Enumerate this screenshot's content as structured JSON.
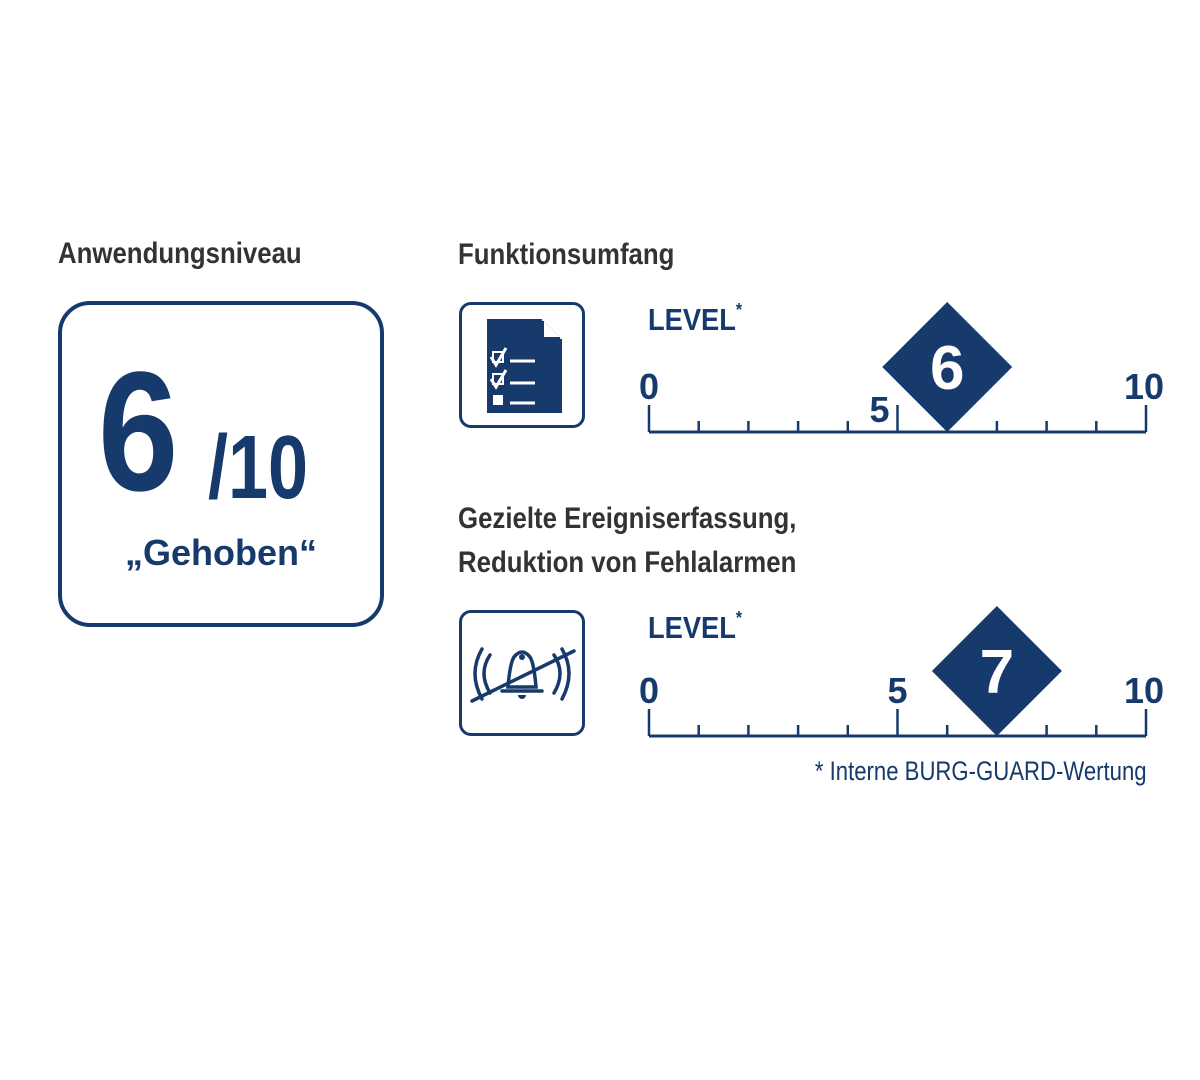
{
  "left": {
    "heading": "Anwendungsniveau",
    "score": "6",
    "max": "/10",
    "rating_label": "„Gehoben“"
  },
  "sections": [
    {
      "heading_lines": [
        "Funktionsumfang"
      ],
      "icon": "checklist-document-icon",
      "level_label": "LEVEL",
      "asterisk": "*",
      "value": 6,
      "value_label": "6",
      "scale_min": "0",
      "scale_mid": "5",
      "scale_max": "10"
    },
    {
      "heading_lines": [
        "Gezielte Ereigniserfassung,",
        "Reduktion von Fehlalarmen"
      ],
      "icon": "alarm-bell-crossed-icon",
      "level_label": "LEVEL",
      "asterisk": "*",
      "value": 7,
      "value_label": "7",
      "scale_min": "0",
      "scale_mid": "5",
      "scale_max": "10"
    }
  ],
  "footnote": "* Interne BURG-GUARD-Wertung",
  "colors": {
    "accent": "#173a6c",
    "heading": "#333333"
  }
}
